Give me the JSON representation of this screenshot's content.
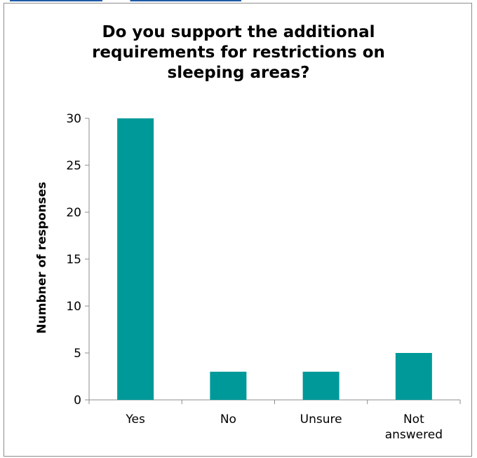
{
  "chart_data": {
    "type": "bar",
    "title": "Do you support the additional\nrequirements for restrictions on\nsleeping areas?",
    "xlabel": "",
    "ylabel": "Numbner of responses",
    "categories": [
      "Yes",
      "No",
      "Unsure",
      "Not answered"
    ],
    "category_lines": [
      [
        "Yes"
      ],
      [
        "No"
      ],
      [
        "Unsure"
      ],
      [
        "Not",
        "answered"
      ]
    ],
    "values": [
      30,
      3,
      3,
      5
    ],
    "ylim": [
      0,
      30
    ],
    "yticks": [
      0,
      5,
      10,
      15,
      20,
      25,
      30
    ],
    "grid": false,
    "legend": "none",
    "bar_color": "#009999"
  }
}
